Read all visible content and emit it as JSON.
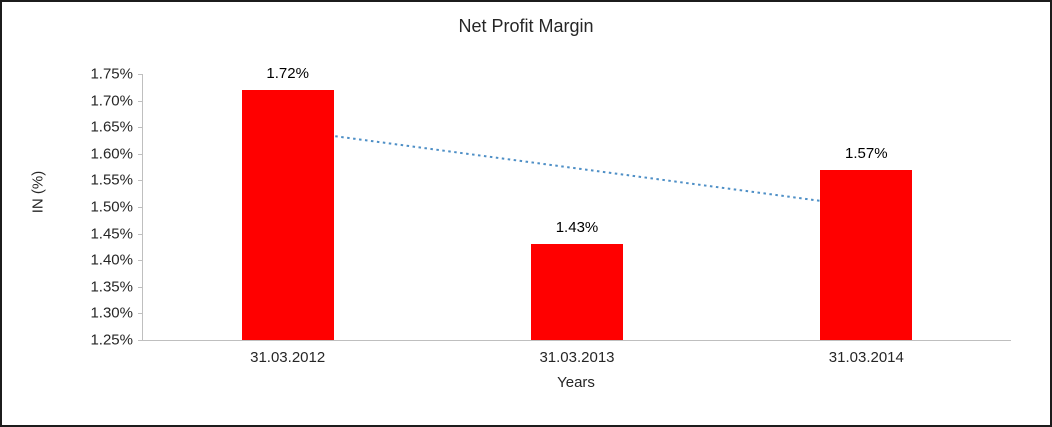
{
  "chart_data": {
    "type": "bar",
    "title": "Net Profit Margin",
    "xlabel": "Years",
    "ylabel": "IN (%)",
    "categories": [
      "31.03.2012",
      "31.03.2013",
      "31.03.2014"
    ],
    "values": [
      1.72,
      1.43,
      1.57
    ],
    "data_labels": [
      "1.72%",
      "1.43%",
      "1.57%"
    ],
    "ylim": [
      1.25,
      1.75
    ],
    "ytick_step": 0.05,
    "ytick_labels": [
      "1.25%",
      "1.30%",
      "1.35%",
      "1.40%",
      "1.45%",
      "1.50%",
      "1.55%",
      "1.60%",
      "1.65%",
      "1.70%",
      "1.75%"
    ],
    "bar_color": "#FF0000",
    "grid": false,
    "legend": false,
    "trendline": {
      "style": "dotted",
      "color": "#4E8FC6",
      "start_value": 1.645,
      "end_value": 1.5
    }
  }
}
